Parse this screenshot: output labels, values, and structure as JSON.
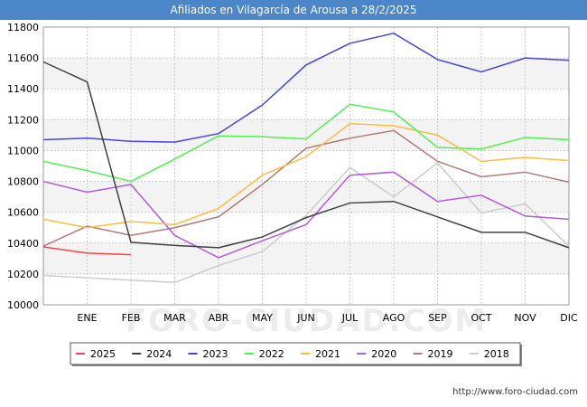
{
  "title": "Afiliados en Vilagarcía de Arousa a 28/2/2025",
  "footer_url": "http://www.foro-ciudad.com",
  "watermark": "FORO-CIUDAD.COM",
  "colors": {
    "header_bg": "#4a86c8",
    "plot_band": "#f3f3f3",
    "grid": "#cccccc"
  },
  "chart_data": {
    "type": "line",
    "title": "Afiliados en Vilagarcía de Arousa a 28/2/2025",
    "xlabel": "",
    "ylabel": "",
    "x_ticks": [
      "ENE",
      "FEB",
      "MAR",
      "ABR",
      "MAY",
      "JUN",
      "JUL",
      "AGO",
      "SEP",
      "OCT",
      "NOV",
      "DIC"
    ],
    "ylim": [
      10000,
      11800
    ],
    "y_ticks": [
      10000,
      10200,
      10400,
      10600,
      10800,
      11000,
      11200,
      11400,
      11600,
      11800
    ],
    "grid": true,
    "legend_position": "bottom",
    "x_positions": [
      0,
      1,
      2,
      3,
      4,
      5,
      6,
      7,
      8,
      9,
      10,
      11,
      12
    ],
    "series": [
      {
        "name": "2025",
        "color": "#f04848",
        "values": [
          10375,
          10335,
          10325
        ]
      },
      {
        "name": "2024",
        "color": "#404040",
        "values": [
          11575,
          11445,
          10405,
          10385,
          10370,
          10440,
          10565,
          10660,
          10670,
          10570,
          10470,
          10470,
          10370
        ]
      },
      {
        "name": "2023",
        "color": "#4646dc",
        "values": [
          11070,
          11080,
          11060,
          11055,
          11110,
          11295,
          11555,
          11695,
          11760,
          11590,
          11510,
          11600,
          11585
        ]
      },
      {
        "name": "2022",
        "color": "#50f050",
        "values": [
          10930,
          10870,
          10800,
          10945,
          11095,
          11090,
          11075,
          11300,
          11250,
          11020,
          11010,
          11085,
          11070
        ]
      },
      {
        "name": "2021",
        "color": "#ffbc40",
        "values": [
          10555,
          10500,
          10540,
          10520,
          10625,
          10840,
          10960,
          11175,
          11160,
          11100,
          10930,
          10955,
          10935
        ]
      },
      {
        "name": "2020",
        "color": "#b45adc",
        "values": [
          10800,
          10730,
          10780,
          10450,
          10305,
          10415,
          10520,
          10840,
          10860,
          10670,
          10710,
          10575,
          10555
        ]
      },
      {
        "name": "2019",
        "color": "#b47878",
        "values": [
          10380,
          10510,
          10450,
          10500,
          10570,
          10780,
          11015,
          11080,
          11130,
          10930,
          10830,
          10860,
          10795
        ]
      },
      {
        "name": "2018",
        "color": "#cccccc",
        "values": [
          10190,
          10175,
          10160,
          10145,
          10255,
          10345,
          10580,
          10890,
          10700,
          10920,
          10595,
          10655,
          10380
        ]
      }
    ]
  }
}
